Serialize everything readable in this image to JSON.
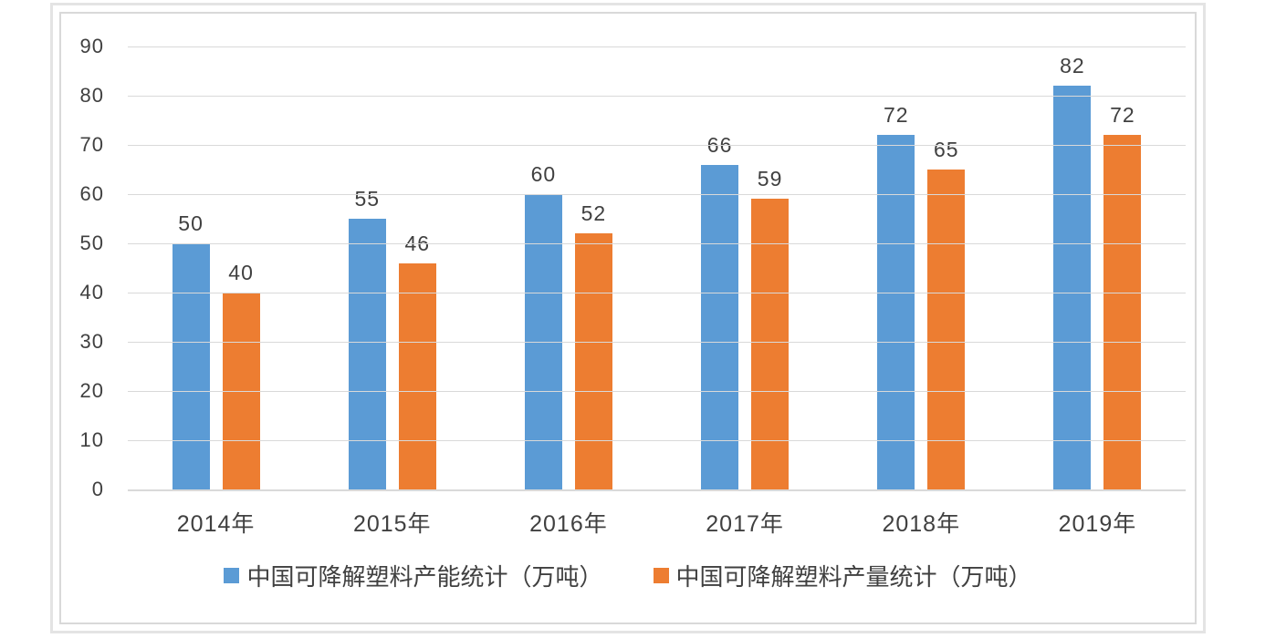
{
  "chart_data": {
    "type": "bar",
    "title": "",
    "xlabel": "",
    "ylabel": "",
    "categories": [
      "2014年",
      "2015年",
      "2016年",
      "2017年",
      "2018年",
      "2019年"
    ],
    "series": [
      {
        "name": "中国可降解塑料产能统计（万吨）",
        "color": "#5B9BD5",
        "values": [
          50,
          55,
          60,
          66,
          72,
          82
        ]
      },
      {
        "name": "中国可降解塑料产量统计（万吨）",
        "color": "#ED7D31",
        "values": [
          40,
          46,
          52,
          59,
          65,
          72
        ]
      }
    ],
    "ylim": [
      0,
      90
    ],
    "yticks": [
      0,
      10,
      20,
      30,
      40,
      50,
      60,
      70,
      80,
      90
    ],
    "grid": true,
    "data_labels": true,
    "legend_position": "bottom"
  },
  "style": {
    "background": "#FFFFFF",
    "panel_border_color": "#D9D9D9",
    "outer_frame_color": "#E4E4E4",
    "grid_color": "#D9D9D9",
    "axis_line_color": "#D9D9D9",
    "text_color": "#404040"
  }
}
